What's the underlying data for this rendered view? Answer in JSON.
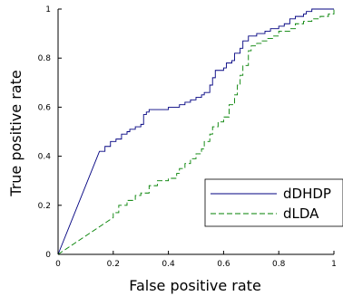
{
  "chart_data": {
    "type": "line",
    "xlabel": "False positive rate",
    "ylabel": "True positive rate",
    "xlim": [
      0,
      1
    ],
    "ylim": [
      0,
      1
    ],
    "xticks": [
      "0",
      "0.2",
      "0.4",
      "0.6",
      "0.8",
      "1"
    ],
    "yticks": [
      "0",
      "0.2",
      "0.4",
      "0.6",
      "0.8",
      "1"
    ],
    "grid": false,
    "legend_position": "lower-right",
    "series": [
      {
        "name": "dDHDP",
        "color": "#000080",
        "style": "solid",
        "points": [
          [
            0,
            0
          ],
          [
            0.15,
            0.42
          ],
          [
            0.17,
            0.42
          ],
          [
            0.17,
            0.44
          ],
          [
            0.19,
            0.44
          ],
          [
            0.19,
            0.46
          ],
          [
            0.21,
            0.46
          ],
          [
            0.21,
            0.47
          ],
          [
            0.23,
            0.47
          ],
          [
            0.23,
            0.49
          ],
          [
            0.25,
            0.49
          ],
          [
            0.25,
            0.5
          ],
          [
            0.26,
            0.5
          ],
          [
            0.26,
            0.51
          ],
          [
            0.28,
            0.51
          ],
          [
            0.28,
            0.52
          ],
          [
            0.3,
            0.52
          ],
          [
            0.3,
            0.53
          ],
          [
            0.31,
            0.53
          ],
          [
            0.31,
            0.55
          ],
          [
            0.31,
            0.57
          ],
          [
            0.32,
            0.57
          ],
          [
            0.32,
            0.58
          ],
          [
            0.33,
            0.58
          ],
          [
            0.33,
            0.59
          ],
          [
            0.38,
            0.59
          ],
          [
            0.38,
            0.59
          ],
          [
            0.4,
            0.59
          ],
          [
            0.4,
            0.6
          ],
          [
            0.44,
            0.6
          ],
          [
            0.44,
            0.61
          ],
          [
            0.46,
            0.61
          ],
          [
            0.46,
            0.62
          ],
          [
            0.48,
            0.62
          ],
          [
            0.48,
            0.63
          ],
          [
            0.5,
            0.63
          ],
          [
            0.5,
            0.64
          ],
          [
            0.52,
            0.64
          ],
          [
            0.52,
            0.65
          ],
          [
            0.53,
            0.65
          ],
          [
            0.53,
            0.66
          ],
          [
            0.55,
            0.66
          ],
          [
            0.55,
            0.69
          ],
          [
            0.56,
            0.69
          ],
          [
            0.56,
            0.72
          ],
          [
            0.57,
            0.72
          ],
          [
            0.57,
            0.75
          ],
          [
            0.6,
            0.75
          ],
          [
            0.6,
            0.76
          ],
          [
            0.61,
            0.76
          ],
          [
            0.61,
            0.78
          ],
          [
            0.63,
            0.78
          ],
          [
            0.63,
            0.79
          ],
          [
            0.64,
            0.79
          ],
          [
            0.64,
            0.82
          ],
          [
            0.66,
            0.82
          ],
          [
            0.66,
            0.84
          ],
          [
            0.67,
            0.84
          ],
          [
            0.67,
            0.87
          ],
          [
            0.69,
            0.87
          ],
          [
            0.69,
            0.89
          ],
          [
            0.72,
            0.89
          ],
          [
            0.72,
            0.9
          ],
          [
            0.75,
            0.9
          ],
          [
            0.75,
            0.91
          ],
          [
            0.77,
            0.91
          ],
          [
            0.77,
            0.92
          ],
          [
            0.8,
            0.92
          ],
          [
            0.8,
            0.93
          ],
          [
            0.82,
            0.93
          ],
          [
            0.82,
            0.94
          ],
          [
            0.84,
            0.94
          ],
          [
            0.84,
            0.96
          ],
          [
            0.86,
            0.96
          ],
          [
            0.86,
            0.97
          ],
          [
            0.89,
            0.97
          ],
          [
            0.89,
            0.98
          ],
          [
            0.9,
            0.98
          ],
          [
            0.9,
            0.99
          ],
          [
            0.92,
            0.99
          ],
          [
            0.92,
            1
          ],
          [
            1,
            1
          ]
        ]
      },
      {
        "name": "dLDA",
        "color": "#008000",
        "style": "dashed",
        "points": [
          [
            0,
            0
          ],
          [
            0.2,
            0.15
          ],
          [
            0.2,
            0.17
          ],
          [
            0.22,
            0.17
          ],
          [
            0.22,
            0.2
          ],
          [
            0.25,
            0.2
          ],
          [
            0.25,
            0.22
          ],
          [
            0.28,
            0.22
          ],
          [
            0.28,
            0.24
          ],
          [
            0.3,
            0.24
          ],
          [
            0.3,
            0.25
          ],
          [
            0.33,
            0.25
          ],
          [
            0.33,
            0.28
          ],
          [
            0.36,
            0.28
          ],
          [
            0.36,
            0.3
          ],
          [
            0.4,
            0.3
          ],
          [
            0.4,
            0.31
          ],
          [
            0.43,
            0.31
          ],
          [
            0.43,
            0.33
          ],
          [
            0.44,
            0.33
          ],
          [
            0.44,
            0.35
          ],
          [
            0.46,
            0.35
          ],
          [
            0.46,
            0.37
          ],
          [
            0.48,
            0.37
          ],
          [
            0.48,
            0.39
          ],
          [
            0.5,
            0.39
          ],
          [
            0.5,
            0.41
          ],
          [
            0.52,
            0.41
          ],
          [
            0.52,
            0.43
          ],
          [
            0.53,
            0.43
          ],
          [
            0.53,
            0.46
          ],
          [
            0.55,
            0.46
          ],
          [
            0.55,
            0.49
          ],
          [
            0.56,
            0.49
          ],
          [
            0.56,
            0.52
          ],
          [
            0.58,
            0.52
          ],
          [
            0.58,
            0.54
          ],
          [
            0.6,
            0.54
          ],
          [
            0.6,
            0.56
          ],
          [
            0.62,
            0.56
          ],
          [
            0.62,
            0.61
          ],
          [
            0.64,
            0.61
          ],
          [
            0.64,
            0.65
          ],
          [
            0.65,
            0.65
          ],
          [
            0.65,
            0.69
          ],
          [
            0.66,
            0.69
          ],
          [
            0.66,
            0.73
          ],
          [
            0.67,
            0.73
          ],
          [
            0.67,
            0.77
          ],
          [
            0.69,
            0.77
          ],
          [
            0.69,
            0.83
          ],
          [
            0.7,
            0.83
          ],
          [
            0.7,
            0.85
          ],
          [
            0.72,
            0.85
          ],
          [
            0.72,
            0.86
          ],
          [
            0.74,
            0.86
          ],
          [
            0.74,
            0.87
          ],
          [
            0.76,
            0.87
          ],
          [
            0.76,
            0.88
          ],
          [
            0.78,
            0.88
          ],
          [
            0.78,
            0.89
          ],
          [
            0.8,
            0.89
          ],
          [
            0.8,
            0.91
          ],
          [
            0.84,
            0.91
          ],
          [
            0.84,
            0.92
          ],
          [
            0.86,
            0.92
          ],
          [
            0.86,
            0.94
          ],
          [
            0.89,
            0.94
          ],
          [
            0.89,
            0.95
          ],
          [
            0.92,
            0.95
          ],
          [
            0.92,
            0.96
          ],
          [
            0.95,
            0.96
          ],
          [
            0.95,
            0.97
          ],
          [
            0.98,
            0.97
          ],
          [
            0.98,
            0.98
          ],
          [
            1,
            0.98
          ],
          [
            1,
            1
          ]
        ]
      }
    ]
  }
}
